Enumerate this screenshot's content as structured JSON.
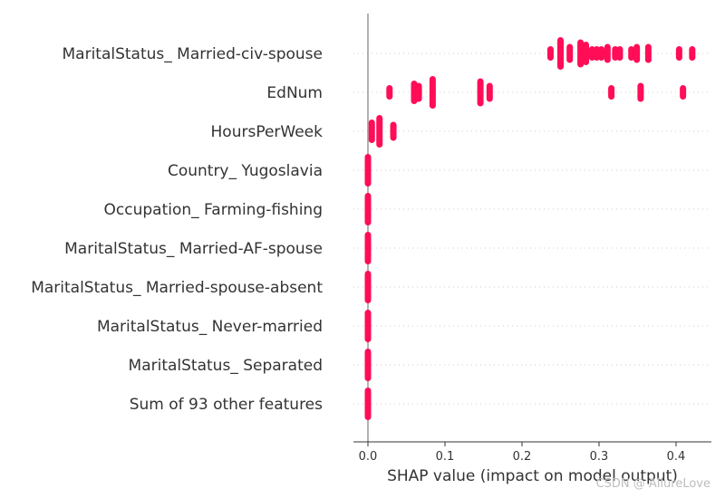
{
  "chart_data": {
    "type": "scatter",
    "subtype": "shap-beeswarm",
    "title": "",
    "xlabel": "SHAP value (impact on model output)",
    "ylabel": "",
    "xlim": [
      -0.02,
      0.44
    ],
    "xticks": [
      0.0,
      0.1,
      0.2,
      0.3,
      0.4
    ],
    "xtick_labels": [
      "0.0",
      "0.1",
      "0.2",
      "0.3",
      "0.4"
    ],
    "point_color": "#ff0d57",
    "features": [
      {
        "name": "MaritalStatus_ Married-civ-spouse",
        "points": [
          [
            0.237,
            1
          ],
          [
            0.25,
            3
          ],
          [
            0.262,
            1.5
          ],
          [
            0.276,
            2.5
          ],
          [
            0.283,
            2
          ],
          [
            0.291,
            1
          ],
          [
            0.297,
            1
          ],
          [
            0.303,
            1
          ],
          [
            0.311,
            1.5
          ],
          [
            0.321,
            1
          ],
          [
            0.327,
            1
          ],
          [
            0.342,
            1
          ],
          [
            0.349,
            1.5
          ],
          [
            0.364,
            1.5
          ],
          [
            0.404,
            1
          ],
          [
            0.421,
            1
          ]
        ]
      },
      {
        "name": "EdNum",
        "points": [
          [
            0.028,
            1
          ],
          [
            0.06,
            2
          ],
          [
            0.066,
            1.5
          ],
          [
            0.084,
            3
          ],
          [
            0.146,
            2.5
          ],
          [
            0.158,
            1.5
          ],
          [
            0.316,
            1
          ],
          [
            0.354,
            1.5
          ],
          [
            0.409,
            1
          ]
        ]
      },
      {
        "name": "HoursPerWeek",
        "points": [
          [
            0.005,
            2
          ],
          [
            0.015,
            3
          ],
          [
            0.033,
            1.5
          ]
        ]
      },
      {
        "name": "Country_ Yugoslavia",
        "points": [
          [
            0.0,
            3
          ]
        ]
      },
      {
        "name": "Occupation_ Farming-fishing",
        "points": [
          [
            0.0,
            3
          ]
        ]
      },
      {
        "name": "MaritalStatus_ Married-AF-spouse",
        "points": [
          [
            0.0,
            3
          ]
        ]
      },
      {
        "name": "MaritalStatus_ Married-spouse-absent",
        "points": [
          [
            0.0,
            3
          ]
        ]
      },
      {
        "name": "MaritalStatus_ Never-married",
        "points": [
          [
            0.0,
            3
          ]
        ]
      },
      {
        "name": "MaritalStatus_ Separated",
        "points": [
          [
            0.0,
            3
          ]
        ]
      },
      {
        "name": "Sum of 93 other features",
        "points": [
          [
            0.0,
            3
          ]
        ]
      }
    ]
  },
  "watermark": "CSDN @ AllureLove"
}
